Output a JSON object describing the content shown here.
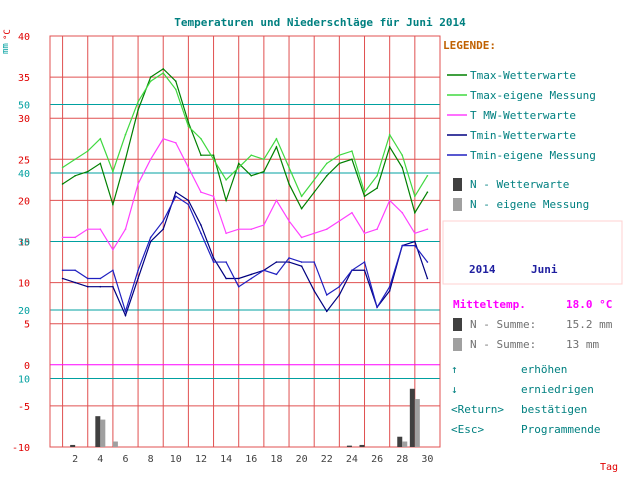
{
  "colors": {
    "title": "#008080",
    "grid_red": "#e05050",
    "grid_teal": "#00a0a0",
    "magenta_line": "#ff00ff",
    "temp_axis": "#e00000",
    "precip_axis": "#00a0a0",
    "tmax_station": "#008000",
    "tmax_own": "#40d840",
    "tmean_station": "#ff40ff",
    "tmin_station": "#000080",
    "tmin_own": "#2020c0",
    "precip_station": "#404040",
    "precip_own": "#a0a0a0",
    "legend_header": "#c06000",
    "legend_text": "#008080",
    "mitteltemp": "#ff00ff",
    "summary_text": "#707070",
    "period_text": "#2020a0",
    "period_box": "#ffd0d0",
    "help_text": "#008080"
  },
  "chart_data": {
    "type": "line",
    "title": "Temperaturen und Niederschläge für Juni 2014",
    "xlabel": "Tag",
    "temp_unit_label": "°C",
    "precip_unit_label": "mm",
    "x": [
      1,
      2,
      3,
      4,
      5,
      6,
      7,
      8,
      9,
      10,
      11,
      12,
      13,
      14,
      15,
      16,
      17,
      18,
      19,
      20,
      21,
      22,
      23,
      24,
      25,
      26,
      27,
      28,
      29,
      30
    ],
    "xticks": [
      "2",
      "4",
      "6",
      "8",
      "10",
      "12",
      "14",
      "16",
      "18",
      "20",
      "22",
      "24",
      "26",
      "28",
      "30"
    ],
    "xtick_values": [
      2,
      4,
      6,
      8,
      10,
      12,
      14,
      16,
      18,
      20,
      22,
      24,
      26,
      28,
      30
    ],
    "xlim": [
      0,
      31
    ],
    "temp_axis": {
      "ylim": [
        -10,
        40
      ],
      "ticks": [
        -10,
        -5,
        0,
        5,
        10,
        15,
        20,
        25,
        30,
        35,
        40
      ],
      "tick_labels": [
        "-10",
        "-5",
        "0",
        "5",
        "10",
        "15",
        "20",
        "25",
        "30",
        "35",
        "40"
      ]
    },
    "precip_axis": {
      "ylim": [
        0,
        60
      ],
      "ticks": [
        10,
        20,
        30,
        40,
        50
      ],
      "tick_labels": [
        "10",
        "20",
        "30",
        "40",
        "50"
      ]
    },
    "series": [
      {
        "name": "Tmax-Wetterwarte",
        "axis": "temp",
        "kind": "line",
        "color_key": "tmax_station",
        "values": [
          22.0,
          23.0,
          23.5,
          24.5,
          19.5,
          25.0,
          31.0,
          35.0,
          36.0,
          34.5,
          29.5,
          25.5,
          25.5,
          20.0,
          24.5,
          23.0,
          23.5,
          26.5,
          22.0,
          19.0,
          21.0,
          23.0,
          24.5,
          25.0,
          20.5,
          21.5,
          26.5,
          24.0,
          18.5,
          21.0
        ]
      },
      {
        "name": "Tmax-eigene Messung",
        "axis": "temp",
        "kind": "line",
        "color_key": "tmax_own",
        "values": [
          24.0,
          25.0,
          26.0,
          27.5,
          23.5,
          28.0,
          32.0,
          34.5,
          35.5,
          33.5,
          29.0,
          27.5,
          25.0,
          22.5,
          24.0,
          25.5,
          25.0,
          27.5,
          24.0,
          20.5,
          22.5,
          24.5,
          25.5,
          26.0,
          21.0,
          23.0,
          28.0,
          25.5,
          20.5,
          23.0
        ]
      },
      {
        "name": "T MW-Wetterwarte",
        "axis": "temp",
        "kind": "line",
        "color_key": "tmean_station",
        "values": [
          15.5,
          15.5,
          16.5,
          16.5,
          14.0,
          16.5,
          22.0,
          25.0,
          27.5,
          27.0,
          24.0,
          21.0,
          20.5,
          16.0,
          16.5,
          16.5,
          17.0,
          20.0,
          17.5,
          15.5,
          16.0,
          16.5,
          17.5,
          18.5,
          16.0,
          16.5,
          20.0,
          18.5,
          16.0,
          16.5
        ]
      },
      {
        "name": "Tmin-Wetterwarte",
        "axis": "temp",
        "kind": "line",
        "color_key": "tmin_station",
        "values": [
          10.5,
          10.0,
          9.5,
          9.5,
          9.5,
          6.0,
          10.5,
          15.0,
          16.5,
          21.0,
          20.0,
          17.0,
          13.0,
          10.5,
          10.5,
          11.0,
          11.5,
          12.5,
          12.5,
          12.0,
          9.0,
          6.5,
          8.5,
          11.5,
          11.5,
          7.0,
          9.0,
          14.5,
          15.0,
          10.5
        ]
      },
      {
        "name": "Tmin-eigene Messung",
        "axis": "temp",
        "kind": "line",
        "color_key": "tmin_own",
        "values": [
          11.5,
          11.5,
          10.5,
          10.5,
          11.5,
          6.5,
          11.5,
          15.5,
          17.5,
          20.5,
          19.5,
          16.0,
          12.5,
          12.5,
          9.5,
          10.5,
          11.5,
          11.0,
          13.0,
          12.5,
          12.5,
          8.5,
          9.5,
          11.5,
          12.5,
          7.0,
          9.5,
          14.5,
          14.5,
          12.5
        ]
      },
      {
        "name": "N - Wetterwarte",
        "axis": "precip",
        "kind": "bar",
        "color_key": "precip_station",
        "values": [
          0,
          0.3,
          0,
          4.5,
          0,
          0,
          0,
          0,
          0,
          0,
          0,
          0,
          0,
          0,
          0,
          0,
          0,
          0,
          0,
          0,
          0,
          0,
          0,
          0.2,
          0.3,
          0,
          0,
          1.5,
          8.5,
          0
        ]
      },
      {
        "name": "N - eigene Messung",
        "axis": "precip",
        "kind": "bar",
        "color_key": "precip_own",
        "values": [
          0,
          0,
          0,
          4.0,
          0.8,
          0,
          0,
          0,
          0,
          0,
          0,
          0,
          0,
          0,
          0,
          0,
          0,
          0,
          0,
          0,
          0,
          0,
          0,
          0,
          0,
          0,
          0,
          0.8,
          7.0,
          0
        ]
      }
    ],
    "legend_position": "right",
    "grid": true
  },
  "legend": {
    "header": "LEGENDE:",
    "items": [
      "Tmax-Wetterwarte",
      "Tmax-eigene Messung",
      "T MW-Wetterwarte",
      "Tmin-Wetterwarte",
      "Tmin-eigene Messung"
    ],
    "bar_items": [
      "N - Wetterwarte",
      "N - eigene Messung"
    ]
  },
  "period": {
    "year": "2014",
    "month": "Juni"
  },
  "summary": {
    "mittel_label": "Mitteltemp.",
    "mittel_value": "18.0 °C",
    "sum1_label": "N - Summe:",
    "sum1_value": "15.2 mm",
    "sum2_label": "N - Summe:",
    "sum2_value": "13   mm"
  },
  "help": [
    {
      "key": "↑",
      "action": "erhöhen"
    },
    {
      "key": "↓",
      "action": "erniedrigen"
    },
    {
      "key": "<Return>",
      "action": "bestätigen"
    },
    {
      "key": "<Esc>",
      "action": "Programmende"
    }
  ]
}
